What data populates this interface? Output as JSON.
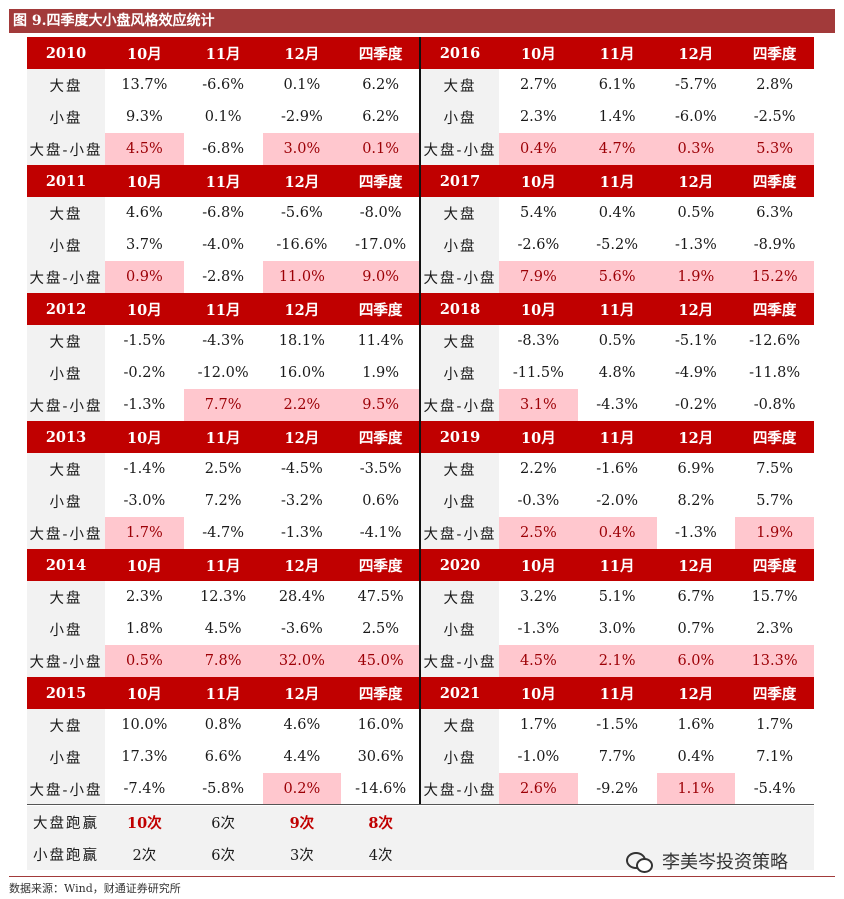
{
  "title": "图 9.四季度大小盘风格效应统计",
  "column_labels": [
    "10月",
    "11月",
    "12月",
    "四季度"
  ],
  "row_labels": [
    "大盘",
    "小盘",
    "大盘-小盘"
  ],
  "blocks": [
    {
      "year": "2010",
      "rows": [
        [
          "13.7%",
          "-6.6%",
          "0.1%",
          "6.2%"
        ],
        [
          "9.3%",
          "0.1%",
          "-2.9%",
          "6.2%"
        ],
        [
          "4.5%",
          "-6.8%",
          "3.0%",
          "0.1%"
        ]
      ],
      "highlight": [
        true,
        false,
        true,
        true
      ]
    },
    {
      "year": "2016",
      "rows": [
        [
          "2.7%",
          "6.1%",
          "-5.7%",
          "2.8%"
        ],
        [
          "2.3%",
          "1.4%",
          "-6.0%",
          "-2.5%"
        ],
        [
          "0.4%",
          "4.7%",
          "0.3%",
          "5.3%"
        ]
      ],
      "highlight": [
        true,
        true,
        true,
        true
      ]
    },
    {
      "year": "2011",
      "rows": [
        [
          "4.6%",
          "-6.8%",
          "-5.6%",
          "-8.0%"
        ],
        [
          "3.7%",
          "-4.0%",
          "-16.6%",
          "-17.0%"
        ],
        [
          "0.9%",
          "-2.8%",
          "11.0%",
          "9.0%"
        ]
      ],
      "highlight": [
        true,
        false,
        true,
        true
      ]
    },
    {
      "year": "2017",
      "rows": [
        [
          "5.4%",
          "0.4%",
          "0.5%",
          "6.3%"
        ],
        [
          "-2.6%",
          "-5.2%",
          "-1.3%",
          "-8.9%"
        ],
        [
          "7.9%",
          "5.6%",
          "1.9%",
          "15.2%"
        ]
      ],
      "highlight": [
        true,
        true,
        true,
        true
      ]
    },
    {
      "year": "2012",
      "rows": [
        [
          "-1.5%",
          "-4.3%",
          "18.1%",
          "11.4%"
        ],
        [
          "-0.2%",
          "-12.0%",
          "16.0%",
          "1.9%"
        ],
        [
          "-1.3%",
          "7.7%",
          "2.2%",
          "9.5%"
        ]
      ],
      "highlight": [
        false,
        true,
        true,
        true
      ]
    },
    {
      "year": "2018",
      "rows": [
        [
          "-8.3%",
          "0.5%",
          "-5.1%",
          "-12.6%"
        ],
        [
          "-11.5%",
          "4.8%",
          "-4.9%",
          "-11.8%"
        ],
        [
          "3.1%",
          "-4.3%",
          "-0.2%",
          "-0.8%"
        ]
      ],
      "highlight": [
        true,
        false,
        false,
        false
      ]
    },
    {
      "year": "2013",
      "rows": [
        [
          "-1.4%",
          "2.5%",
          "-4.5%",
          "-3.5%"
        ],
        [
          "-3.0%",
          "7.2%",
          "-3.2%",
          "0.6%"
        ],
        [
          "1.7%",
          "-4.7%",
          "-1.3%",
          "-4.1%"
        ]
      ],
      "highlight": [
        true,
        false,
        false,
        false
      ]
    },
    {
      "year": "2019",
      "rows": [
        [
          "2.2%",
          "-1.6%",
          "6.9%",
          "7.5%"
        ],
        [
          "-0.3%",
          "-2.0%",
          "8.2%",
          "5.7%"
        ],
        [
          "2.5%",
          "0.4%",
          "-1.3%",
          "1.9%"
        ]
      ],
      "highlight": [
        true,
        true,
        false,
        true
      ]
    },
    {
      "year": "2014",
      "rows": [
        [
          "2.3%",
          "12.3%",
          "28.4%",
          "47.5%"
        ],
        [
          "1.8%",
          "4.5%",
          "-3.6%",
          "2.5%"
        ],
        [
          "0.5%",
          "7.8%",
          "32.0%",
          "45.0%"
        ]
      ],
      "highlight": [
        true,
        true,
        true,
        true
      ]
    },
    {
      "year": "2020",
      "rows": [
        [
          "3.2%",
          "5.1%",
          "6.7%",
          "15.7%"
        ],
        [
          "-1.3%",
          "3.0%",
          "0.7%",
          "2.3%"
        ],
        [
          "4.5%",
          "2.1%",
          "6.0%",
          "13.3%"
        ]
      ],
      "highlight": [
        true,
        true,
        true,
        true
      ]
    },
    {
      "year": "2015",
      "rows": [
        [
          "10.0%",
          "0.8%",
          "4.6%",
          "16.0%"
        ],
        [
          "17.3%",
          "6.6%",
          "4.4%",
          "30.6%"
        ],
        [
          "-7.4%",
          "-5.8%",
          "0.2%",
          "-14.6%"
        ]
      ],
      "highlight": [
        false,
        false,
        true,
        false
      ]
    },
    {
      "year": "2021",
      "rows": [
        [
          "1.7%",
          "-1.5%",
          "1.6%",
          "1.7%"
        ],
        [
          "-1.0%",
          "7.7%",
          "0.4%",
          "7.1%"
        ],
        [
          "2.6%",
          "-9.2%",
          "1.1%",
          "-5.4%"
        ]
      ],
      "highlight": [
        true,
        false,
        true,
        false
      ]
    }
  ],
  "summary": {
    "big_label": "大盘跑赢",
    "small_label": "小盘跑赢",
    "big_counts": [
      "10次",
      "6次",
      "9次",
      "8次"
    ],
    "small_counts": [
      "2次",
      "6次",
      "3次",
      "4次"
    ],
    "big_emphasis": [
      true,
      false,
      true,
      true
    ]
  },
  "watermark": "李美岑投资策略",
  "source": "数据来源：Wind，财通证券研究所",
  "colors": {
    "header_red": "#c00000",
    "title_bar": "#a23a3a",
    "highlight_pink": "#ffc7ce",
    "label_gray": "#f2f2f2"
  }
}
